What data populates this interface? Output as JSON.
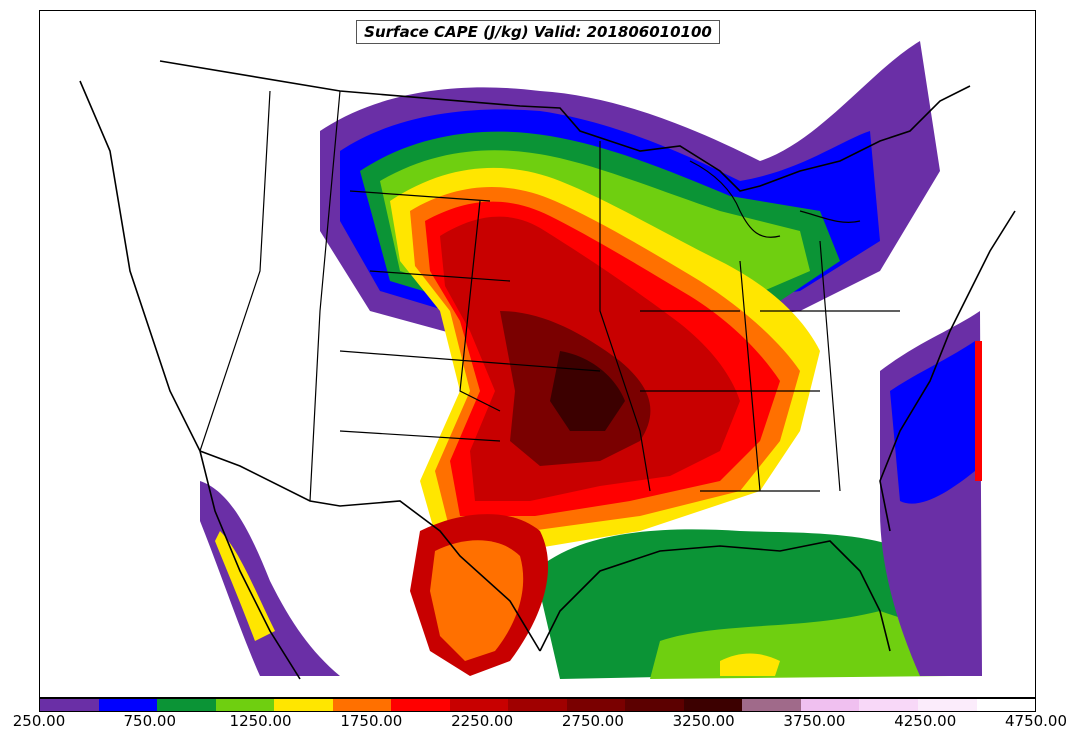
{
  "title": "Surface CAPE (J/kg) Valid: 201806010100",
  "legend": {
    "colors": [
      "#6a2fa6",
      "#0000ff",
      "#0b9436",
      "#6fcf10",
      "#ffe600",
      "#ff7000",
      "#ff0000",
      "#c80000",
      "#a00000",
      "#7a0000",
      "#5c0000",
      "#3c0000",
      "#a06a8a",
      "#f0c0f0",
      "#f8d8f8",
      "#fbecfb",
      "#ffffff"
    ],
    "tick_labels": [
      "250.00",
      "750.00",
      "1250.00",
      "1750.00",
      "2250.00",
      "2750.00",
      "3250.00",
      "3750.00",
      "4250.00",
      "4750.00"
    ]
  }
}
